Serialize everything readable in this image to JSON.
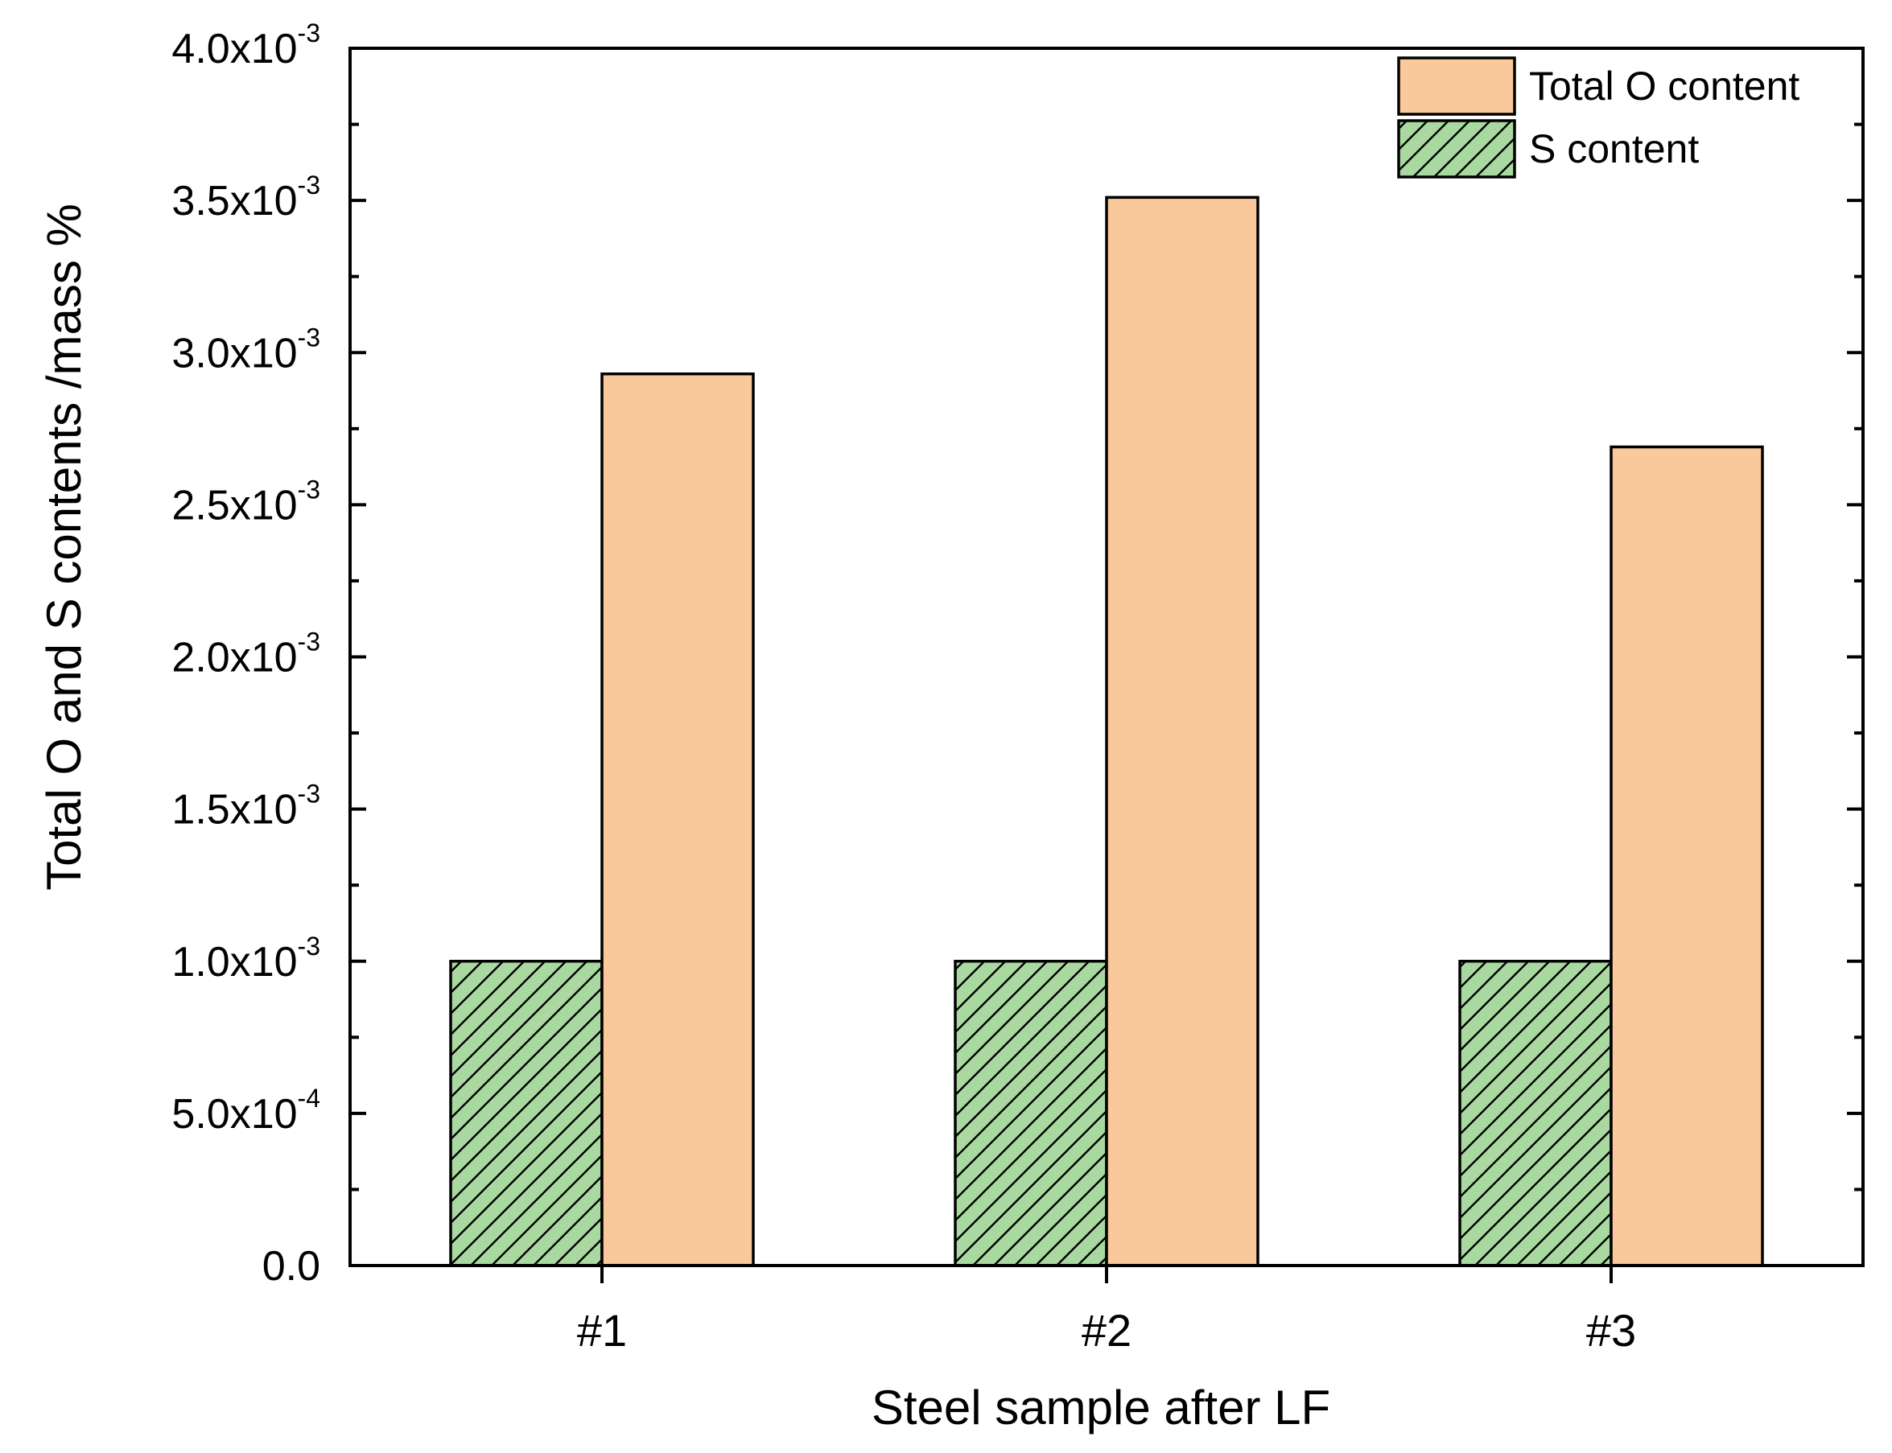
{
  "chart_data": {
    "type": "bar",
    "xlabel": "Steel sample after LF",
    "ylabel": "Total O and S contents /mass %",
    "categories": [
      "#1",
      "#2",
      "#3"
    ],
    "series": [
      {
        "name": "S content",
        "values": [
          0.001,
          0.001,
          0.001
        ],
        "color": "#a9d9a0",
        "pattern": "diagonal-hatch"
      },
      {
        "name": "Total O content",
        "values": [
          0.00293,
          0.00351,
          0.00269
        ],
        "color": "#f9c89b",
        "pattern": "solid"
      }
    ],
    "ylim": [
      0,
      0.004
    ],
    "y_ticks": [
      {
        "value": 0.0,
        "mantissa": "0.0",
        "exponent": ""
      },
      {
        "value": 0.0005,
        "mantissa": "5.0x10",
        "exponent": "-4"
      },
      {
        "value": 0.001,
        "mantissa": "1.0x10",
        "exponent": "-3"
      },
      {
        "value": 0.0015,
        "mantissa": "1.5x10",
        "exponent": "-3"
      },
      {
        "value": 0.002,
        "mantissa": "2.0x10",
        "exponent": "-3"
      },
      {
        "value": 0.0025,
        "mantissa": "2.5x10",
        "exponent": "-3"
      },
      {
        "value": 0.003,
        "mantissa": "3.0x10",
        "exponent": "-3"
      },
      {
        "value": 0.0035,
        "mantissa": "3.5x10",
        "exponent": "-3"
      },
      {
        "value": 0.004,
        "mantissa": "4.0x10",
        "exponent": "-3"
      }
    ],
    "grid": false,
    "legend": {
      "position": "top-right",
      "order": [
        "Total O content",
        "S content"
      ]
    }
  }
}
